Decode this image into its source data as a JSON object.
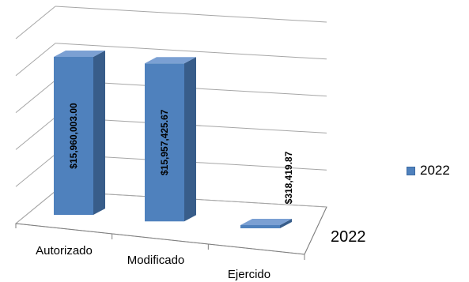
{
  "chart_data": {
    "type": "bar",
    "categories": [
      "Autorizado",
      "Modificado",
      "Ejercido"
    ],
    "series": [
      {
        "name": "2022",
        "values": [
          15960003.0,
          15957425.67,
          318419.87
        ],
        "labels": [
          "$15,960,003.00",
          "$15,957,425.67",
          "$318,419.87"
        ]
      }
    ],
    "depth_axis_label": "2022",
    "legend_label": "2022",
    "legend_position": "right",
    "ylim": [
      0,
      20000000
    ],
    "grid": true,
    "three_d": true,
    "colors": {
      "bar_front": "#4f81bd",
      "bar_side": "#385d8a",
      "bar_top": "#7ba0d3",
      "grid": "#a6a6a6",
      "axis": "#7f7f7f"
    }
  }
}
